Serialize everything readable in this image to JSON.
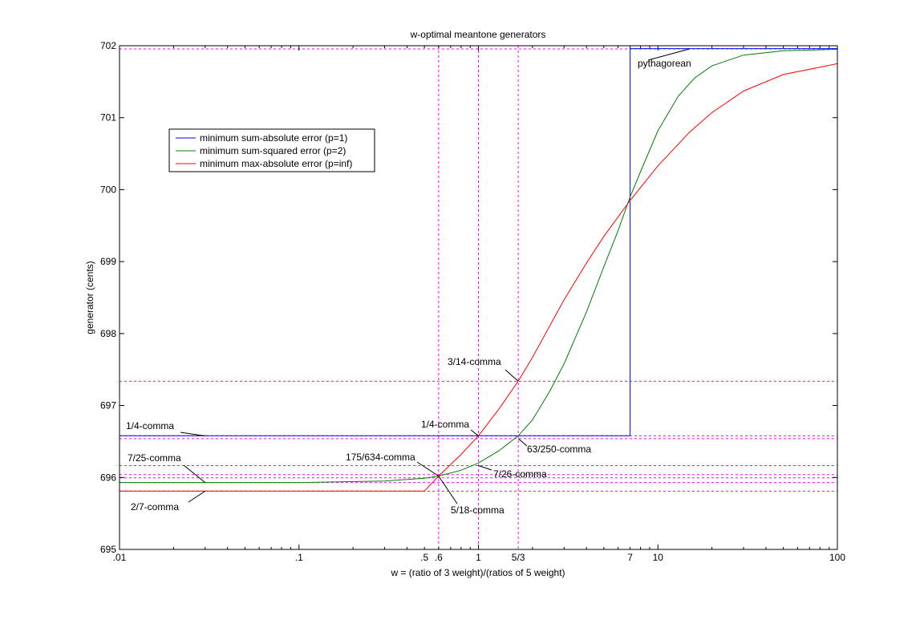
{
  "chart_data": {
    "type": "line",
    "title": "w-optimal meantone generators",
    "xlabel": "w = (ratio of 3 weight)/(ratios of 5 weight)",
    "ylabel": "generator (cents)",
    "xscale": "log",
    "xlim": [
      0.01,
      100
    ],
    "ylim": [
      695,
      702
    ],
    "x_tick_labels": [
      {
        "x": 0.01,
        "label": ".01"
      },
      {
        "x": 0.1,
        "label": ".1"
      },
      {
        "x": 0.5,
        "label": ".5"
      },
      {
        "x": 0.6,
        "label": ".6"
      },
      {
        "x": 1,
        "label": "1"
      },
      {
        "x": 1.6667,
        "label": "5/3"
      },
      {
        "x": 7,
        "label": "7"
      },
      {
        "x": 10,
        "label": "10"
      },
      {
        "x": 100,
        "label": "100"
      }
    ],
    "y_ticks": [
      695,
      696,
      697,
      698,
      699,
      700,
      701,
      702
    ],
    "legend_position": "upper-left",
    "series": [
      {
        "name": "minimum sum-absolute error (p=1)",
        "color": "#0000ff",
        "x": [
          0.01,
          7,
          7,
          100
        ],
        "y": [
          696.58,
          696.58,
          701.96,
          701.96
        ]
      },
      {
        "name": "minimum sum-squared error (p=2)",
        "color": "#008000",
        "x": [
          0.01,
          0.1,
          0.3,
          0.5,
          0.6,
          0.8,
          1,
          1.3,
          1.6667,
          2,
          2.5,
          3,
          4,
          5,
          6,
          7,
          8,
          10,
          13,
          16,
          20,
          30,
          50,
          100
        ],
        "y": [
          695.93,
          695.93,
          695.95,
          695.99,
          696.02,
          696.1,
          696.2,
          696.37,
          696.58,
          696.8,
          697.2,
          697.58,
          698.3,
          698.93,
          699.43,
          699.9,
          700.25,
          700.82,
          701.3,
          701.55,
          701.72,
          701.87,
          701.93,
          701.95
        ]
      },
      {
        "name": "minimum max-absolute error (p=inf)",
        "color": "#ff0000",
        "x": [
          0.01,
          0.5,
          0.6,
          0.7,
          0.8,
          1,
          1.3,
          1.6667,
          2,
          3,
          4,
          5,
          7,
          10,
          15,
          20,
          30,
          50,
          100
        ],
        "y": [
          695.81,
          695.81,
          696.02,
          696.18,
          696.32,
          696.58,
          696.95,
          697.34,
          697.67,
          698.47,
          698.98,
          699.35,
          699.85,
          700.33,
          700.8,
          701.07,
          701.37,
          701.6,
          701.75
        ]
      }
    ],
    "reference_lines": {
      "vertical": [
        0.6,
        1,
        1.6667
      ],
      "horizontal": [
        701.955,
        697.337,
        696.578,
        696.54,
        696.165,
        696.04,
        695.995,
        695.93,
        695.81
      ]
    },
    "annotations": [
      {
        "text": "pythagorean",
        "point": [
          15,
          701.955
        ]
      },
      {
        "text": "3/14-comma",
        "point": [
          1.6667,
          697.337
        ]
      },
      {
        "text": "1/4-comma",
        "point": [
          0.03,
          696.578
        ]
      },
      {
        "text": "1/4-comma",
        "point": [
          1,
          696.578
        ]
      },
      {
        "text": "63/250-comma",
        "point": [
          1.6667,
          696.54
        ]
      },
      {
        "text": "7/25-comma",
        "point": [
          0.03,
          695.93
        ]
      },
      {
        "text": "175/634-comma",
        "point": [
          0.6,
          696.02
        ]
      },
      {
        "text": "7/26-comma",
        "point": [
          1,
          696.165
        ]
      },
      {
        "text": "2/7-comma",
        "point": [
          0.03,
          695.81
        ]
      },
      {
        "text": "5/18-comma",
        "point": [
          0.6,
          696.02
        ]
      }
    ]
  }
}
